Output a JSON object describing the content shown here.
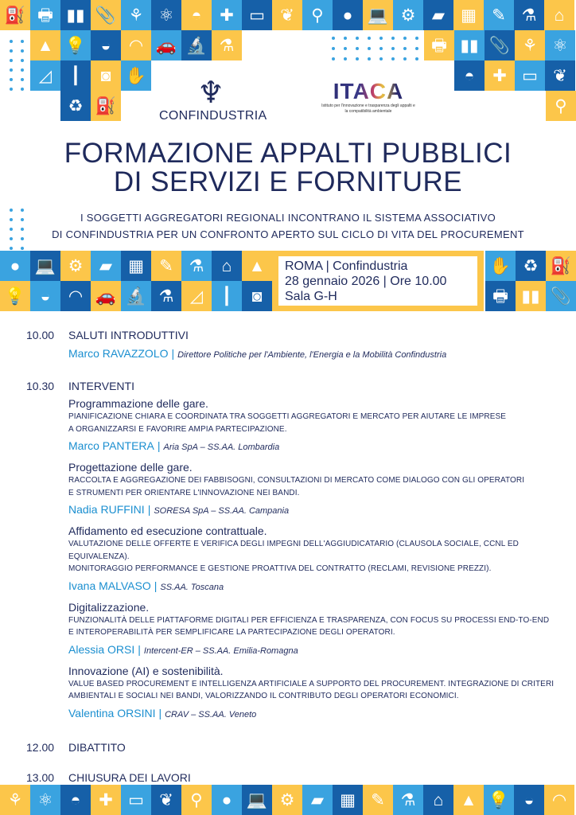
{
  "colors": {
    "navy": "#1f2a5c",
    "blue": "#1b8fd0",
    "yellow": "#fcc64a",
    "light_blue": "#3aa3e0",
    "dark_blue": "#1660a8"
  },
  "decor_icons": [
    "jerrycan",
    "printer",
    "binders",
    "paperclip",
    "tulip",
    "atom",
    "cloche",
    "first-aid-kit",
    "cabinet",
    "leaves",
    "lab-coat",
    "apple",
    "laptop",
    "gear",
    "usb-drive",
    "bricks",
    "pencil",
    "flask",
    "house",
    "traffic-cone",
    "light-bulb",
    "burger",
    "hard-hat",
    "car",
    "microscope",
    "round-flask",
    "set-square",
    "toothbrush",
    "washing-machine",
    "gloves",
    "recycle-bin"
  ],
  "logos": {
    "confindustria": "CONFINDUSTRIA",
    "itaca": "ITACA",
    "itaca_sub": "Istituto per l'innovazione e trasparenza degli appalti e la compatibilità ambientale"
  },
  "title": {
    "line1": "FORMAZIONE APPALTI PUBBLICI",
    "line2": "DI SERVIZI E FORNITURE"
  },
  "subtitle": {
    "line1": "I SOGGETTI AGGREGATORI REGIONALI INCONTRANO IL SISTEMA ASSOCIATIVO",
    "line2": "DI CONFINDUSTRIA PER UN CONFRONTO APERTO SUL CICLO DI VITA DEL PROCUREMENT"
  },
  "event": {
    "line1": "ROMA | Confindustria",
    "line2": "28 gennaio 2026 | Ore 10.00",
    "line3": "Sala G-H"
  },
  "agenda": [
    {
      "time": "10.00",
      "title": "SALUTI INTRODUTTIVI",
      "speaker": {
        "name": "Marco RAVAZZOLO",
        "role": "Direttore Politiche per l'Ambiente, l'Energia e la Mobilità Confindustria"
      }
    },
    {
      "time": "10.30",
      "title": "INTERVENTI",
      "topics": [
        {
          "title": "Programmazione delle gare.",
          "desc1": "PIANIFICAZIONE CHIARA E COORDINATA TRA SOGGETTI AGGREGATORI E MERCATO PER AIUTARE LE IMPRESE",
          "desc2": "A ORGANIZZARSI E FAVORIRE AMPIA PARTECIPAZIONE.",
          "name": "Marco PANTERA",
          "role": "Aria SpA – SS.AA. Lombardia"
        },
        {
          "title": "Progettazione delle gare.",
          "desc1": "RACCOLTA E AGGREGAZIONE DEI FABBISOGNI, CONSULTAZIONI DI MERCATO COME DIALOGO CON GLI OPERATORI",
          "desc2": "E STRUMENTI PER ORIENTARE L'INNOVAZIONE NEI BANDI.",
          "name": "Nadia RUFFINI",
          "role": "SORESA SpA – SS.AA. Campania"
        },
        {
          "title": "Affidamento ed esecuzione contrattuale.",
          "desc1": "VALUTAZIONE DELLE OFFERTE E VERIFICA DEGLI IMPEGNI DELL'AGGIUDICATARIO (CLAUSOLA SOCIALE, CCNL ED EQUIVALENZA).",
          "desc2": "MONITORAGGIO PERFORMANCE E GESTIONE PROATTIVA DEL CONTRATTO (RECLAMI, REVISIONE PREZZI).",
          "name": "Ivana MALVASO",
          "role": "SS.AA. Toscana"
        },
        {
          "title": "Digitalizzazione.",
          "desc1": "FUNZIONALITÀ DELLE PIATTAFORME DIGITALI PER EFFICIENZA E TRASPARENZA, CON FOCUS SU PROCESSI END-TO-END",
          "desc2": "E INTEROPERABILITÀ PER SEMPLIFICARE LA PARTECIPAZIONE DEGLI OPERATORI.",
          "name": "Alessia ORSI",
          "role": "Intercent-ER – SS.AA. Emilia-Romagna"
        },
        {
          "title": "Innovazione (AI) e sostenibilità.",
          "desc1": "VALUE BASED PROCUREMENT E INTELLIGENZA ARTIFICIALE A SUPPORTO DEL PROCUREMENT. INTEGRAZIONE DI CRITERI",
          "desc2": "AMBIENTALI E SOCIALI NEI BANDI, VALORIZZANDO IL CONTRIBUTO DEGLI OPERATORI ECONOMICI.",
          "name": "Valentina ORSINI",
          "role": "CRAV – SS.AA. Veneto"
        }
      ]
    },
    {
      "time": "12.00",
      "title": "DIBATTITO"
    },
    {
      "time": "13.00",
      "title": "CHIUSURA DEI LAVORI"
    }
  ],
  "speaker_separator": "|"
}
